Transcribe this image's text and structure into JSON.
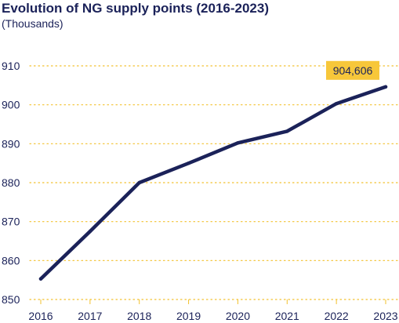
{
  "colors": {
    "line": "#1b2259",
    "grid": "#f2c12e",
    "callout_bg": "#f7c73a",
    "text": "#1b2259"
  },
  "chart_data": {
    "type": "line",
    "title": "Evolution of NG supply points (2016-2023)",
    "subtitle": "(Thousands)",
    "xlabel": "",
    "ylabel": "",
    "x": [
      "2016",
      "2017",
      "2018",
      "2019",
      "2020",
      "2021",
      "2022",
      "2023"
    ],
    "series": [
      {
        "values": [
          855.3,
          867.5,
          880.0,
          885.0,
          890.2,
          893.2,
          900.3,
          904.606
        ]
      }
    ],
    "ylim": [
      850,
      910
    ],
    "yticks": [
      850,
      860,
      870,
      880,
      890,
      900,
      910
    ],
    "grid": true,
    "annotation": {
      "label": "904,606",
      "year": "2023"
    }
  }
}
